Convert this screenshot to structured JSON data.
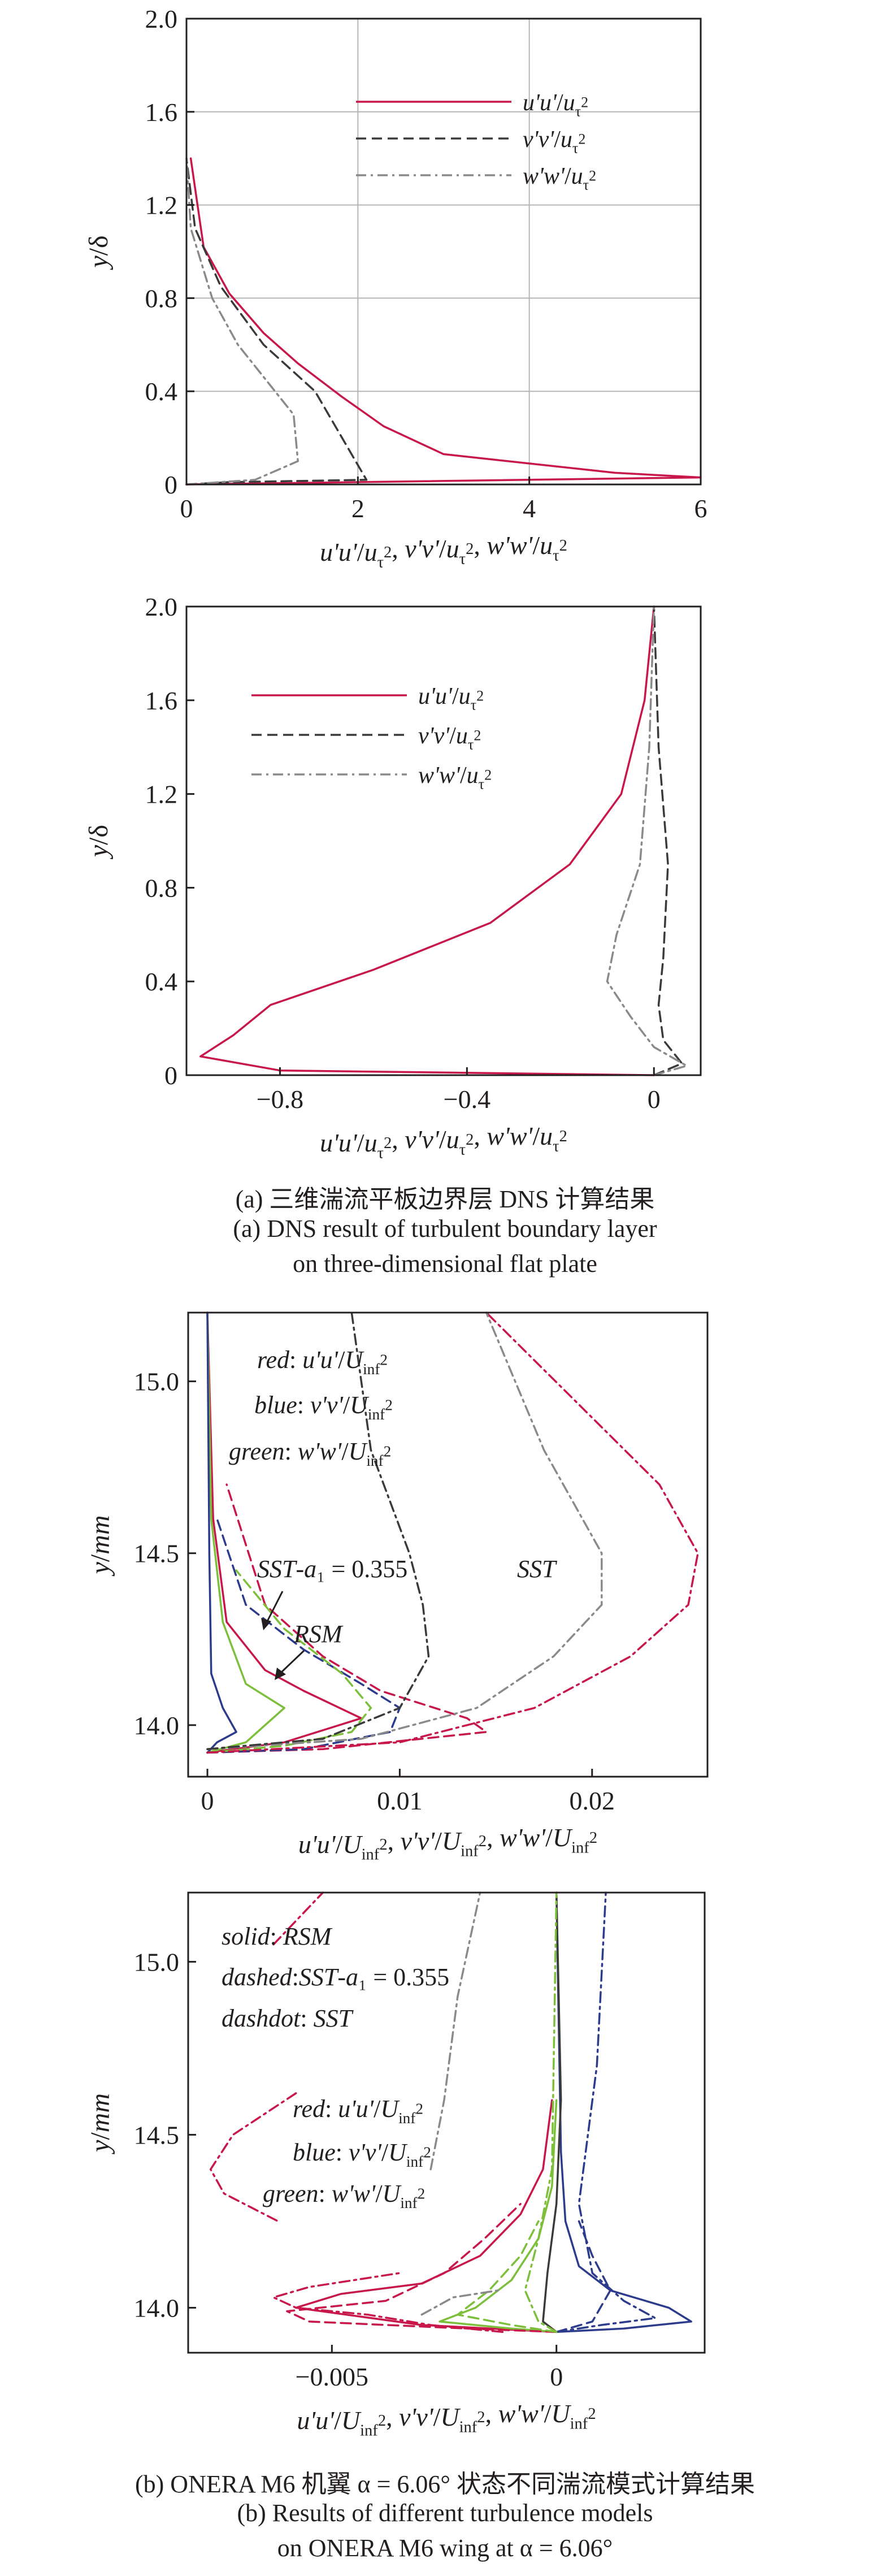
{
  "captions": {
    "a_cn": "(a) 三维湍流平板边界层 DNS 计算结果",
    "a_en1": "(a) DNS result of turbulent boundary layer",
    "a_en2": "on three-dimensional flat plate",
    "b_cn": "(b) ONERA M6 机翼 α = 6.06° 状态不同湍流模式计算结果",
    "b_en1": "(b) Results of different turbulence models",
    "b_en2": "on ONERA M6 wing at α = 6.06°"
  },
  "colors": {
    "red": "#c8174a",
    "blue": "#2c3b8c",
    "green": "#7cbf3a",
    "grey": "#8a8a8a",
    "dark": "#3a3a3a",
    "axis": "#231f20",
    "grid": "#b5b5b5"
  },
  "chart_data": [
    {
      "type": "line",
      "xlabel": "u'u'/u_τ², v'v'/u_τ², w'w'/u_τ²",
      "ylabel": "y/δ",
      "xlim": [
        0,
        6
      ],
      "ylim": [
        0,
        2.0
      ],
      "xticks": [
        "0",
        "2",
        "4",
        "6"
      ],
      "yticks": [
        "0",
        "0.4",
        "0.8",
        "1.2",
        "1.6",
        "2.0"
      ],
      "grid": true,
      "legend": "top-right",
      "series": [
        {
          "name": "u'u'/u_τ²",
          "style": "solid",
          "color": "red",
          "x": [
            0.0,
            6.0,
            5.0,
            3.0,
            2.3,
            1.8,
            1.3,
            0.9,
            0.5,
            0.2,
            0.05
          ],
          "y": [
            0.0,
            0.03,
            0.05,
            0.13,
            0.25,
            0.38,
            0.52,
            0.65,
            0.82,
            1.02,
            1.4
          ]
        },
        {
          "name": "v'v'/u_τ²",
          "style": "dashed",
          "color": "dark",
          "x": [
            0.0,
            0.5,
            2.1,
            1.5,
            0.9,
            0.4,
            0.1,
            0.0
          ],
          "y": [
            0.0,
            0.01,
            0.02,
            0.4,
            0.6,
            0.85,
            1.1,
            1.4
          ]
        },
        {
          "name": "w'w'/u_τ²",
          "style": "dashdot",
          "color": "grey",
          "x": [
            0.0,
            0.8,
            1.3,
            1.25,
            0.6,
            0.3,
            0.05,
            0.0
          ],
          "y": [
            0.0,
            0.02,
            0.1,
            0.3,
            0.6,
            0.8,
            1.1,
            1.4
          ]
        }
      ]
    },
    {
      "type": "line",
      "xlabel": "u'u'/u_τ², v'v'/u_τ², w'w'/u_τ²",
      "ylabel": "y/δ",
      "xlim": [
        -1.0,
        0.1
      ],
      "ylim": [
        0,
        2.0
      ],
      "xticks": [
        "−0.8",
        "−0.4",
        "0"
      ],
      "yticks": [
        "0",
        "0.4",
        "0.8",
        "1.2",
        "1.6",
        "2.0"
      ],
      "grid": false,
      "legend": "top-left",
      "series": [
        {
          "name": "u'u'/u_τ²",
          "style": "solid",
          "color": "red",
          "x": [
            0.0,
            -0.8,
            -0.97,
            -0.9,
            -0.82,
            -0.6,
            -0.35,
            -0.18,
            -0.07,
            -0.02,
            0.0
          ],
          "y": [
            0.0,
            0.02,
            0.08,
            0.17,
            0.3,
            0.45,
            0.65,
            0.9,
            1.2,
            1.6,
            2.0
          ]
        },
        {
          "name": "v'v'/u_τ²",
          "style": "dashed",
          "color": "dark",
          "x": [
            0.0,
            0.06,
            0.02,
            0.01,
            0.02,
            0.03,
            0.01,
            0.0
          ],
          "y": [
            0.0,
            0.05,
            0.15,
            0.3,
            0.5,
            0.9,
            1.4,
            2.0
          ]
        },
        {
          "name": "w'w'/u_τ²",
          "style": "dashdot",
          "color": "grey",
          "x": [
            0.0,
            0.07,
            0.0,
            -0.05,
            -0.1,
            -0.08,
            -0.03,
            -0.01,
            0.0
          ],
          "y": [
            0.0,
            0.04,
            0.12,
            0.25,
            0.4,
            0.6,
            0.9,
            1.4,
            2.0
          ]
        }
      ]
    },
    {
      "type": "line",
      "xlabel": "u'u'/U_inf², v'v'/U_inf², w'w'/U_inf²",
      "ylabel": "y/mm",
      "xlim": [
        -0.001,
        0.026
      ],
      "ylim": [
        13.85,
        15.2
      ],
      "xticks": [
        "0",
        "0.01",
        "0.02"
      ],
      "yticks": [
        "14.0",
        "14.5",
        "15.0"
      ],
      "grid": false,
      "annotations": [
        "red: u'u'/U_inf²",
        "blue: v'v'/U_inf²",
        "green: w'w'/U_inf²",
        "SST-a₁ = 0.355",
        "SST",
        "RSM"
      ],
      "series": [
        {
          "style": "solid",
          "color": "red",
          "x": [
            0.0,
            0.004,
            0.008,
            0.005,
            0.003,
            0.001,
            0.0003,
            0.0
          ],
          "y": [
            13.92,
            13.95,
            14.02,
            14.1,
            14.16,
            14.3,
            14.6,
            15.2
          ]
        },
        {
          "style": "solid",
          "color": "green",
          "x": [
            0.0,
            0.002,
            0.004,
            0.002,
            0.0008,
            0.0002,
            0.0
          ],
          "y": [
            13.92,
            13.95,
            14.05,
            14.12,
            14.3,
            14.6,
            15.2
          ]
        },
        {
          "style": "solid",
          "color": "blue",
          "x": [
            0.0,
            0.0005,
            0.0015,
            0.0008,
            0.0002,
            0.0001,
            0.0
          ],
          "y": [
            13.92,
            13.95,
            13.98,
            14.05,
            14.15,
            14.5,
            15.2
          ]
        },
        {
          "style": "dashed",
          "color": "red",
          "x": [
            0.0,
            0.006,
            0.0145,
            0.0135,
            0.009,
            0.006,
            0.003,
            0.001
          ],
          "y": [
            13.92,
            13.93,
            13.98,
            14.02,
            14.1,
            14.2,
            14.35,
            14.7
          ]
        },
        {
          "style": "dashed",
          "color": "blue",
          "x": [
            0.0,
            0.005,
            0.0095,
            0.01,
            0.008,
            0.005,
            0.002,
            0.0005
          ],
          "y": [
            13.92,
            13.93,
            13.98,
            14.05,
            14.12,
            14.22,
            14.35,
            14.6
          ]
        },
        {
          "style": "dashed",
          "color": "green",
          "x": [
            0.0,
            0.004,
            0.0075,
            0.0085,
            0.007,
            0.004,
            0.0015
          ],
          "y": [
            13.92,
            13.94,
            13.98,
            14.05,
            14.15,
            14.28,
            14.45
          ]
        },
        {
          "style": "dashdot",
          "color": "red",
          "x": [
            0.0,
            0.01,
            0.017,
            0.022,
            0.025,
            0.0255,
            0.0235,
            0.019,
            0.0145
          ],
          "y": [
            13.92,
            13.95,
            14.05,
            14.2,
            14.35,
            14.5,
            14.7,
            14.95,
            15.2
          ]
        },
        {
          "style": "dashdot",
          "color": "grey",
          "x": [
            0.0,
            0.008,
            0.014,
            0.018,
            0.0205,
            0.0205,
            0.0175,
            0.0145
          ],
          "y": [
            13.93,
            13.96,
            14.05,
            14.2,
            14.35,
            14.5,
            14.8,
            15.2
          ]
        },
        {
          "style": "dashdot",
          "color": "dark",
          "x": [
            0.0,
            0.006,
            0.01,
            0.0115,
            0.0112,
            0.0105,
            0.0085,
            0.0075
          ],
          "y": [
            13.93,
            13.96,
            14.05,
            14.2,
            14.35,
            14.5,
            14.8,
            15.2
          ]
        }
      ]
    },
    {
      "type": "line",
      "xlabel": "u'u'/U_inf², v'v'/U_inf², w'w'/U_inf²",
      "ylabel": "y/mm",
      "xlim": [
        -0.0082,
        0.0033
      ],
      "ylim": [
        13.87,
        15.2
      ],
      "xticks": [
        "−0.005",
        "0"
      ],
      "yticks": [
        "14.0",
        "14.5",
        "15.0"
      ],
      "grid": false,
      "annotations": [
        "solid: RSM",
        "dashed:SST-a₁ = 0.355",
        "dashdot: SST",
        "red: u'u'/U_inf²",
        "blue: v'v'/U_inf²",
        "green: w'w'/U_inf²"
      ],
      "series": [
        {
          "style": "solid",
          "color": "red",
          "x": [
            0.0,
            -0.003,
            -0.0058,
            -0.0048,
            -0.003,
            -0.0017,
            -0.0008,
            -0.0003,
            -0.0001
          ],
          "y": [
            13.93,
            13.95,
            14.0,
            14.04,
            14.07,
            14.15,
            14.27,
            14.4,
            14.6
          ]
        },
        {
          "style": "solid",
          "color": "blue",
          "x": [
            0.0,
            0.0015,
            0.003,
            0.0025,
            0.0012,
            0.0005,
            0.0002,
            0.0001,
            0.0
          ],
          "y": [
            13.93,
            13.94,
            13.96,
            14.0,
            14.05,
            14.12,
            14.25,
            14.45,
            15.2
          ]
        },
        {
          "style": "solid",
          "color": "green",
          "x": [
            0.0,
            -0.001,
            -0.0026,
            -0.0018,
            -0.001,
            -0.0004,
            -0.0001,
            0.0
          ],
          "y": [
            13.93,
            13.94,
            13.96,
            14.0,
            14.08,
            14.2,
            14.35,
            14.6
          ]
        },
        {
          "style": "solid",
          "color": "dark",
          "x": [
            0.0,
            -0.0003,
            -0.0002,
            0.0,
            0.0001,
            0.0
          ],
          "y": [
            13.93,
            13.96,
            14.1,
            14.3,
            14.6,
            15.2
          ]
        },
        {
          "style": "dashed",
          "color": "red",
          "x": [
            0.0,
            -0.002,
            -0.0055,
            -0.006,
            -0.0038,
            -0.0025,
            -0.0016,
            -0.0008
          ],
          "y": [
            13.93,
            13.94,
            13.96,
            13.99,
            14.02,
            14.1,
            14.2,
            14.3
          ]
        },
        {
          "style": "dashed",
          "color": "blue",
          "x": [
            0.0,
            0.0008,
            0.0012,
            0.0008,
            0.0005
          ],
          "y": [
            13.93,
            13.96,
            14.05,
            14.15,
            14.25
          ]
        },
        {
          "style": "dashed",
          "color": "green",
          "x": [
            0.0,
            -0.001,
            -0.0022,
            -0.0015,
            -0.0008,
            -0.0004
          ],
          "y": [
            13.93,
            13.95,
            13.98,
            14.05,
            14.15,
            14.25
          ]
        },
        {
          "style": "dashdot",
          "color": "red",
          "x": [
            -0.0012,
            -0.0028,
            -0.0042,
            -0.0058,
            -0.0063,
            -0.0055,
            -0.0045,
            -0.0035
          ],
          "y": [
            13.93,
            13.95,
            13.98,
            14.0,
            14.03,
            14.06,
            14.08,
            14.1
          ]
        },
        {
          "style": "dashdot",
          "color": "red",
          "x": [
            -0.0058,
            -0.0072,
            -0.0077,
            -0.0074,
            -0.0062
          ],
          "y": [
            14.62,
            14.5,
            14.4,
            14.33,
            14.25
          ]
        },
        {
          "style": "dashdot",
          "color": "red",
          "x": [
            -0.0063,
            -0.0052
          ],
          "y": [
            15.05,
            15.2
          ]
        },
        {
          "style": "dashdot",
          "color": "blue",
          "x": [
            0.0,
            0.001,
            0.0022,
            0.0015,
            0.0008,
            0.0005,
            0.0009,
            0.0011
          ],
          "y": [
            13.93,
            13.95,
            13.97,
            14.02,
            14.1,
            14.3,
            14.7,
            15.2
          ]
        },
        {
          "style": "dashdot",
          "color": "green",
          "x": [
            0.0,
            -0.0004,
            -0.0007,
            -0.0004,
            -0.0001,
            0.0
          ],
          "y": [
            13.93,
            13.96,
            14.05,
            14.2,
            14.4,
            15.2
          ]
        },
        {
          "style": "dashdot",
          "color": "grey",
          "x": [
            -0.0028,
            -0.0025,
            -0.0022,
            -0.0017
          ],
          "y": [
            14.4,
            14.6,
            14.9,
            15.2
          ]
        },
        {
          "style": "dashdot",
          "color": "grey",
          "x": [
            -0.003,
            -0.0023,
            -0.0013
          ],
          "y": [
            13.98,
            14.03,
            14.05
          ]
        }
      ]
    }
  ]
}
